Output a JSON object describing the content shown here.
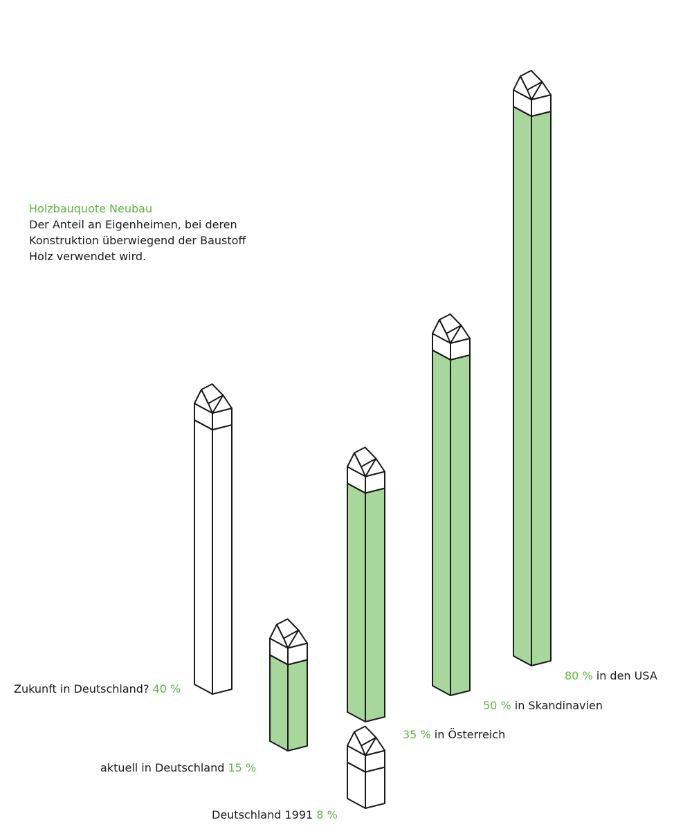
{
  "legend": {
    "title": "Holzbauquote Neubau",
    "description_lines": [
      "Der Anteil an Eigenheimen, bei deren",
      "Konstruktion überwiegend der Baustoff",
      "Holz verwendet wird."
    ]
  },
  "labels": {
    "germany_1991": {
      "text": "Deutschland 1991",
      "pct": "8 %"
    },
    "germany_current": {
      "text": "aktuell in Deutschland",
      "pct": "15 %"
    },
    "germany_future": {
      "text": "Zukunft in Deutschland?",
      "pct": "40 %"
    },
    "austria": {
      "text": "in Österreich",
      "pct": "35 %"
    },
    "scandinavia": {
      "text": "in Skandinavien",
      "pct": "50 %"
    },
    "usa": {
      "text": "in den USA",
      "pct": "80 %"
    }
  },
  "colors": {
    "accent": "#5bb53f",
    "fill": "#a8d79b",
    "outline": "#1a1a1a"
  },
  "chart_data": {
    "type": "bar",
    "categories": [
      "Deutschland 1991",
      "aktuell in Deutschland",
      "Zukunft in Deutschland?",
      "in Österreich",
      "in Skandinavien",
      "in den USA"
    ],
    "values": [
      8,
      15,
      40,
      35,
      50,
      80
    ],
    "unit": "%",
    "title": "Holzbauquote Neubau",
    "filled": [
      false,
      true,
      false,
      true,
      true,
      true
    ]
  }
}
